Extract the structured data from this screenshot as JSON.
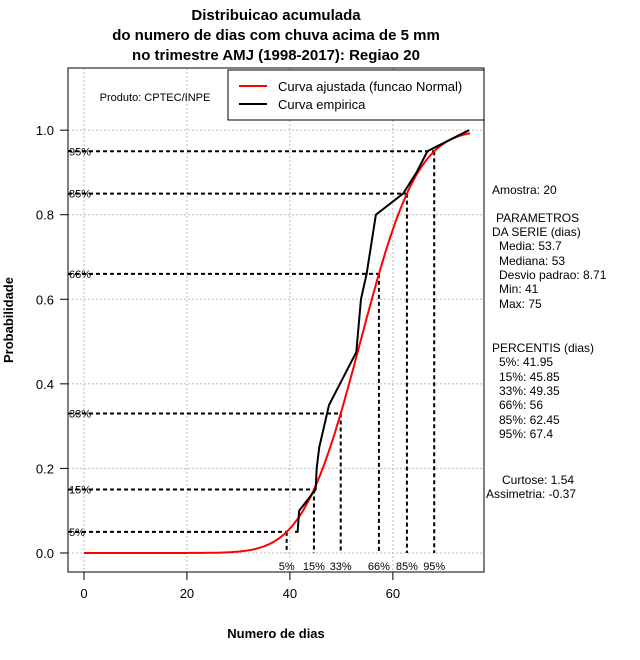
{
  "chart_data": {
    "type": "line",
    "title": [
      "Distribuicao acumulada",
      "do numero de dias com chuva acima de 5 mm",
      "no trimestre AMJ (1998-2017): Regiao 20"
    ],
    "xlabel": "Numero de dias",
    "ylabel": "Probabilidade",
    "xlim": [
      -3.1,
      77.7
    ],
    "ylim": [
      -0.045,
      1.147
    ],
    "xticks": [
      0,
      20,
      40,
      60
    ],
    "yticks": [
      "0.0",
      "0.2",
      "0.4",
      "0.6",
      "0.8",
      "1.0"
    ],
    "grid": true,
    "credit": "Produto: CPTEC/INPE",
    "legend": {
      "position": "top-right",
      "entries": [
        {
          "label": "Curva ajustada (funcao Normal)",
          "color": "#ff0000"
        },
        {
          "label": "Curva empirica",
          "color": "#000000"
        }
      ]
    },
    "series": [
      {
        "name": "Curva ajustada (funcao Normal)",
        "type": "normal_cdf",
        "mean": 53.7,
        "sd": 8.71,
        "x_range": [
          0,
          75
        ],
        "color": "#ff0000"
      },
      {
        "name": "Curva empirica",
        "color": "#000000",
        "x": [
          41,
          41.5,
          41.8,
          45,
          45.2,
          45.7,
          47.6,
          52.9,
          53.8,
          54.9,
          56.7,
          62,
          64.6,
          66.7,
          68.3,
          74.8
        ],
        "y": [
          0.05,
          0.05,
          0.1,
          0.15,
          0.2,
          0.25,
          0.35,
          0.475,
          0.6,
          0.66,
          0.8,
          0.85,
          0.9,
          0.95,
          0.96,
          1.0
        ]
      }
    ],
    "percentile_lines": [
      {
        "label": "5%",
        "p": 0.05,
        "x": 39.37
      },
      {
        "label": "15%",
        "p": 0.15,
        "x": 44.67
      },
      {
        "label": "33%",
        "p": 0.33,
        "x": 49.87
      },
      {
        "label": "66%",
        "p": 0.66,
        "x": 57.29
      },
      {
        "label": "85%",
        "p": 0.85,
        "x": 62.73
      },
      {
        "label": "95%",
        "p": 0.95,
        "x": 68.03
      }
    ]
  },
  "side_panel": {
    "amostra": "Amostra: 20",
    "param_title1": "PARAMETROS",
    "param_title2": "DA SERIE (dias)",
    "params": [
      "Media: 53.7",
      "Mediana: 53",
      "Desvio padrao: 8.71",
      "Min: 41",
      "Max: 75"
    ],
    "perc_title": "PERCENTIS (dias)",
    "percentis": [
      "5%: 41.95",
      "15%: 45.85",
      "33%: 49.35",
      "66%: 56",
      "85%: 62.45",
      "95%: 67.4"
    ],
    "curtose": "Curtose: 1.54",
    "assimetria": "Assimetria: -0.37"
  }
}
